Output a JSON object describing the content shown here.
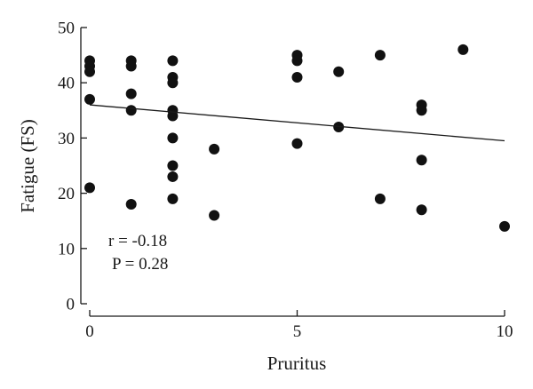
{
  "chart_data": {
    "type": "scatter",
    "xlabel": "Pruritus",
    "ylabel": "Fatigue (FS)",
    "xlim": [
      0,
      10
    ],
    "ylim": [
      0,
      50
    ],
    "xticks": [
      0,
      5,
      10
    ],
    "yticks": [
      0,
      10,
      20,
      30,
      40,
      50
    ],
    "xtick_labels": [
      "0",
      "5",
      "10"
    ],
    "ytick_labels": [
      "0",
      "10",
      "20",
      "30",
      "40",
      "50"
    ],
    "grid": false,
    "marker_color": "#111111",
    "points": [
      {
        "x": 0,
        "y": 44
      },
      {
        "x": 0,
        "y": 43
      },
      {
        "x": 0,
        "y": 42
      },
      {
        "x": 0,
        "y": 37
      },
      {
        "x": 0,
        "y": 21
      },
      {
        "x": 1,
        "y": 44
      },
      {
        "x": 1,
        "y": 43
      },
      {
        "x": 1,
        "y": 38
      },
      {
        "x": 1,
        "y": 35
      },
      {
        "x": 1,
        "y": 18
      },
      {
        "x": 2,
        "y": 44
      },
      {
        "x": 2,
        "y": 41
      },
      {
        "x": 2,
        "y": 40
      },
      {
        "x": 2,
        "y": 35
      },
      {
        "x": 2,
        "y": 34
      },
      {
        "x": 2,
        "y": 30
      },
      {
        "x": 2,
        "y": 25
      },
      {
        "x": 2,
        "y": 23
      },
      {
        "x": 2,
        "y": 19
      },
      {
        "x": 3,
        "y": 28
      },
      {
        "x": 3,
        "y": 16
      },
      {
        "x": 5,
        "y": 45
      },
      {
        "x": 5,
        "y": 44
      },
      {
        "x": 5,
        "y": 41
      },
      {
        "x": 5,
        "y": 29
      },
      {
        "x": 6,
        "y": 42
      },
      {
        "x": 6,
        "y": 32
      },
      {
        "x": 7,
        "y": 45
      },
      {
        "x": 7,
        "y": 19
      },
      {
        "x": 8,
        "y": 36
      },
      {
        "x": 8,
        "y": 35
      },
      {
        "x": 8,
        "y": 26
      },
      {
        "x": 8,
        "y": 17
      },
      {
        "x": 9,
        "y": 46
      },
      {
        "x": 10,
        "y": 14
      }
    ],
    "trendline": {
      "x": [
        0,
        10
      ],
      "y": [
        36,
        29.5
      ]
    },
    "annotations": [
      "r = -0.18",
      "P = 0.28"
    ]
  }
}
